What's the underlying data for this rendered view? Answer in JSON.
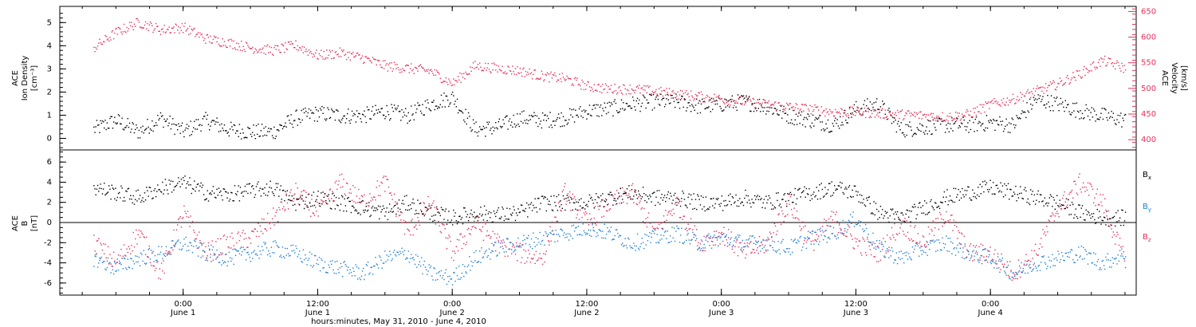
{
  "colors": {
    "density": "#000000",
    "velocity": "#e8305a",
    "bx": "#000000",
    "by": "#1f7fd6",
    "bz": "#e8305a"
  },
  "chart_data": [
    {
      "panel": "top",
      "type": "scatter",
      "ylabel": [
        "ACE",
        "Ion Density",
        "[cm⁻³]"
      ],
      "ylabel_right": [
        "ACE",
        "Velocity",
        "[km/s]"
      ],
      "ylim": [
        -0.5,
        5.7
      ],
      "ylim_right": [
        380,
        660
      ],
      "yticks": [
        "0",
        "1",
        "2",
        "3",
        "4",
        "5"
      ],
      "yticks_right": [
        "400",
        "450",
        "500",
        "550",
        "600",
        "650"
      ],
      "series": [
        {
          "key": "density",
          "x": [
            -8,
            -6,
            -4,
            -2,
            0,
            2,
            4,
            6,
            8,
            10,
            12,
            14,
            16,
            18,
            20,
            22,
            24,
            26,
            28,
            30,
            32,
            34,
            36,
            38,
            40,
            42,
            44,
            46,
            48,
            50,
            52,
            54,
            56,
            58,
            60,
            62,
            64,
            66,
            68,
            70,
            72,
            74,
            76,
            78,
            80,
            82,
            84
          ],
          "y": [
            0.4,
            0.8,
            0.3,
            0.9,
            0.3,
            0.8,
            0.4,
            0.3,
            0.3,
            0.9,
            1.1,
            1.0,
            1.0,
            1.2,
            1.0,
            1.5,
            1.8,
            0.4,
            0.5,
            0.9,
            0.8,
            0.9,
            1.2,
            1.3,
            1.5,
            1.6,
            1.6,
            1.4,
            1.5,
            1.6,
            1.4,
            1.0,
            0.8,
            0.6,
            1.3,
            1.5,
            0.4,
            0.5,
            0.6,
            0.6,
            0.7,
            0.6,
            1.7,
            1.5,
            1.2,
            1.0,
            0.8
          ]
        },
        {
          "key": "velocity",
          "x": [
            -8,
            -6,
            -4,
            -2,
            0,
            2,
            4,
            6,
            8,
            10,
            12,
            14,
            16,
            18,
            20,
            22,
            24,
            26,
            28,
            30,
            32,
            34,
            36,
            38,
            40,
            42,
            44,
            46,
            48,
            50,
            52,
            54,
            56,
            58,
            60,
            62,
            64,
            66,
            68,
            70,
            72,
            74,
            76,
            78,
            80,
            82,
            84
          ],
          "y": [
            580,
            610,
            630,
            615,
            620,
            598,
            590,
            580,
            575,
            585,
            565,
            570,
            560,
            545,
            540,
            535,
            510,
            545,
            540,
            535,
            525,
            520,
            505,
            500,
            500,
            495,
            490,
            485,
            480,
            475,
            470,
            465,
            460,
            455,
            455,
            452,
            450,
            448,
            445,
            450,
            470,
            480,
            495,
            510,
            530,
            555,
            540
          ]
        }
      ]
    },
    {
      "panel": "bottom",
      "type": "scatter",
      "ylabel": [
        "ACE",
        "B",
        "[nT]"
      ],
      "ylim": [
        -7.2,
        7.2
      ],
      "yticks": [
        "-6",
        "-4",
        "-2",
        "0",
        "2",
        "4",
        "6"
      ],
      "legend": [
        "Bx",
        "By",
        "Bz"
      ],
      "series": [
        {
          "key": "bx",
          "name": "Bx",
          "x": [
            -8,
            -6,
            -4,
            -2,
            0,
            2,
            4,
            6,
            8,
            10,
            12,
            14,
            16,
            18,
            20,
            22,
            24,
            26,
            28,
            30,
            32,
            34,
            36,
            38,
            40,
            42,
            44,
            46,
            48,
            50,
            52,
            54,
            56,
            58,
            60,
            62,
            64,
            66,
            68,
            70,
            72,
            74,
            76,
            78,
            80,
            82,
            84
          ],
          "y": [
            3.5,
            3.0,
            2.5,
            3.5,
            4.0,
            3.0,
            2.8,
            3.2,
            3.5,
            2.0,
            2.5,
            2.0,
            1.5,
            1.0,
            2.0,
            1.0,
            0.5,
            1.0,
            0.8,
            1.0,
            2.0,
            2.0,
            2.0,
            2.5,
            3.0,
            2.5,
            2.5,
            2.0,
            2.0,
            2.5,
            2.0,
            2.5,
            3.0,
            3.5,
            3.0,
            1.0,
            0.5,
            1.5,
            2.5,
            3.0,
            3.5,
            3.0,
            2.5,
            2.0,
            1.0,
            0.5,
            0.5
          ]
        },
        {
          "key": "by",
          "name": "By",
          "x": [
            -8,
            -6,
            -4,
            -2,
            0,
            2,
            4,
            6,
            8,
            10,
            12,
            14,
            16,
            18,
            20,
            22,
            24,
            26,
            28,
            30,
            32,
            34,
            36,
            38,
            40,
            42,
            44,
            46,
            48,
            50,
            52,
            54,
            56,
            58,
            60,
            62,
            64,
            66,
            68,
            70,
            72,
            74,
            76,
            78,
            80,
            82,
            84
          ],
          "y": [
            -3.5,
            -4.5,
            -3.5,
            -3.0,
            -2.0,
            -3.0,
            -3.5,
            -3.0,
            -2.5,
            -3.0,
            -4.0,
            -4.5,
            -5.0,
            -3.5,
            -3.0,
            -5.0,
            -5.5,
            -3.5,
            -2.5,
            -2.0,
            -1.5,
            -1.0,
            -0.5,
            -1.0,
            -2.0,
            -1.5,
            -1.0,
            -2.0,
            -1.5,
            -2.0,
            -2.0,
            -2.5,
            -1.5,
            -1.0,
            0.5,
            -2.5,
            -3.5,
            -2.5,
            -2.0,
            -3.0,
            -3.5,
            -5.0,
            -4.0,
            -3.5,
            -3.0,
            -4.0,
            -3.0
          ]
        },
        {
          "key": "bz",
          "name": "Bz",
          "x": [
            -8,
            -6,
            -4,
            -2,
            0,
            2,
            4,
            6,
            8,
            10,
            12,
            14,
            16,
            18,
            20,
            22,
            24,
            26,
            28,
            30,
            32,
            34,
            36,
            38,
            40,
            42,
            44,
            46,
            48,
            50,
            52,
            54,
            56,
            58,
            60,
            62,
            64,
            66,
            68,
            70,
            72,
            74,
            76,
            78,
            80,
            82,
            84
          ],
          "y": [
            -2.0,
            -4.0,
            -1.0,
            -5.0,
            1.0,
            -3.0,
            -2.0,
            -1.5,
            0.5,
            3.0,
            1.0,
            4.0,
            2.0,
            4.0,
            -1.0,
            2.0,
            -3.0,
            0.0,
            -2.0,
            -3.0,
            -3.5,
            3.0,
            0.0,
            2.0,
            3.0,
            -1.0,
            2.0,
            -2.0,
            -1.0,
            -3.0,
            -2.0,
            2.0,
            -2.0,
            0.5,
            -2.0,
            -3.0,
            0.0,
            -2.0,
            1.0,
            -3.0,
            -3.0,
            -5.0,
            -3.0,
            1.5,
            4.0,
            2.0,
            -4.0
          ]
        }
      ]
    }
  ],
  "x_axis": {
    "xlim": [
      -11,
      85
    ],
    "ticks": [
      {
        "h": 0,
        "time": "0:00",
        "day": "June 1"
      },
      {
        "h": 12,
        "time": "12:00",
        "day": "June 1"
      },
      {
        "h": 24,
        "time": "0:00",
        "day": "June 2"
      },
      {
        "h": 36,
        "time": "12:00",
        "day": "June 2"
      },
      {
        "h": 48,
        "time": "0:00",
        "day": "June 3"
      },
      {
        "h": 60,
        "time": "12:00",
        "day": "June 3"
      },
      {
        "h": 72,
        "time": "0:00",
        "day": "June 4"
      }
    ],
    "label": "hours:minutes, May 31, 2010 - June  4, 2010"
  },
  "legend_labels": {
    "bx": "B",
    "bx_sub": "x",
    "by": "B",
    "by_sub": "y",
    "bz": "B",
    "bz_sub": "z"
  }
}
